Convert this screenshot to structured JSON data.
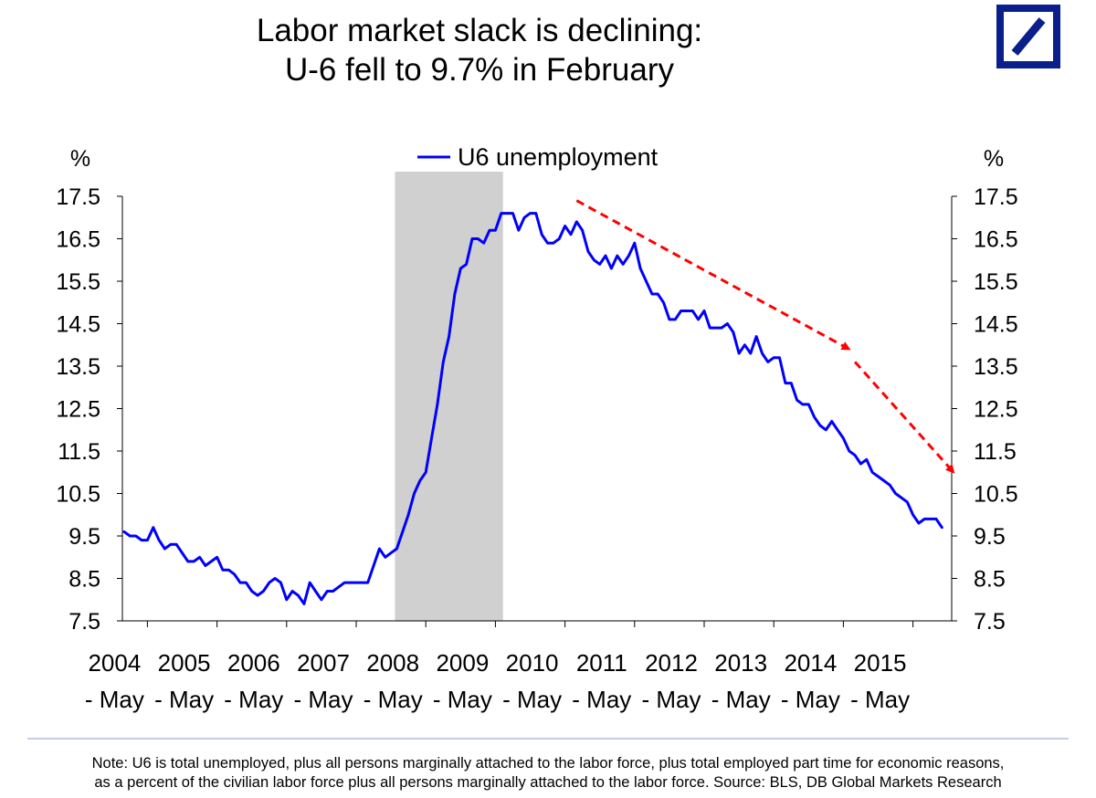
{
  "header": {
    "title_line1": "Labor market slack is declining:",
    "title_line2": "U-6 fell to 9.7% in February",
    "logo_icon": "deutsche-bank-logo-icon",
    "logo_color": "#0a1e8c"
  },
  "chart_data": {
    "type": "line",
    "title": "Labor market slack is declining: U-6 fell to 9.7% in February",
    "y_unit_left": "%",
    "y_unit_right": "%",
    "ylim": [
      7.5,
      17.5
    ],
    "yticks": [
      "17.5",
      "16.5",
      "15.5",
      "14.5",
      "13.5",
      "12.5",
      "11.5",
      "10.5",
      "9.5",
      "8.5",
      "7.5"
    ],
    "x_tick_labels": [
      {
        "year": "2004",
        "sub": "- May"
      },
      {
        "year": "2005",
        "sub": "- May"
      },
      {
        "year": "2006",
        "sub": "- May"
      },
      {
        "year": "2007",
        "sub": "- May"
      },
      {
        "year": "2008",
        "sub": "- May"
      },
      {
        "year": "2009",
        "sub": "- May"
      },
      {
        "year": "2010",
        "sub": "- May"
      },
      {
        "year": "2011",
        "sub": "- May"
      },
      {
        "year": "2012",
        "sub": "- May"
      },
      {
        "year": "2013",
        "sub": "- May"
      },
      {
        "year": "2014",
        "sub": "- May"
      },
      {
        "year": "2015",
        "sub": "- May"
      }
    ],
    "legend": "U6 unemployment",
    "legend_position": "top-center",
    "grid": false,
    "recession_shading": {
      "start": "2007-12",
      "end": "2009-06",
      "color": "#d0d0d0"
    },
    "series": [
      {
        "name": "U6 unemployment",
        "color": "#0000ff",
        "start": "2004-01",
        "frequency": "monthly",
        "values": [
          9.6,
          9.5,
          9.5,
          9.4,
          9.4,
          9.7,
          9.4,
          9.2,
          9.3,
          9.3,
          9.1,
          8.9,
          8.9,
          9.0,
          8.8,
          8.9,
          9.0,
          8.7,
          8.7,
          8.6,
          8.4,
          8.4,
          8.2,
          8.1,
          8.2,
          8.4,
          8.5,
          8.4,
          8.0,
          8.2,
          8.1,
          7.9,
          8.4,
          8.2,
          8.0,
          8.2,
          8.2,
          8.3,
          8.4,
          8.4,
          8.4,
          8.4,
          8.4,
          8.8,
          9.2,
          9.0,
          9.1,
          9.2,
          9.6,
          10.0,
          10.5,
          10.8,
          11.0,
          11.8,
          12.6,
          13.6,
          14.2,
          15.2,
          15.8,
          15.9,
          16.5,
          16.5,
          16.4,
          16.7,
          16.7,
          17.1,
          17.1,
          17.1,
          16.7,
          17.0,
          17.1,
          17.1,
          16.6,
          16.4,
          16.4,
          16.5,
          16.8,
          16.6,
          16.9,
          16.7,
          16.2,
          16.0,
          15.9,
          16.1,
          15.8,
          16.1,
          15.9,
          16.1,
          16.4,
          15.8,
          15.5,
          15.2,
          15.2,
          15.0,
          14.6,
          14.6,
          14.8,
          14.8,
          14.8,
          14.6,
          14.8,
          14.4,
          14.4,
          14.4,
          14.5,
          14.3,
          13.8,
          14.0,
          13.8,
          14.2,
          13.8,
          13.6,
          13.7,
          13.7,
          13.1,
          13.1,
          12.7,
          12.6,
          12.6,
          12.3,
          12.1,
          12.0,
          12.2,
          12.0,
          11.8,
          11.5,
          11.4,
          11.2,
          11.3,
          11.0,
          10.9,
          10.8,
          10.7,
          10.5,
          10.4,
          10.3,
          10.0,
          9.8,
          9.9,
          9.9,
          9.9,
          9.7
        ]
      }
    ],
    "annotations": [
      {
        "type": "arrow",
        "style": "dashed",
        "color": "#ff0000",
        "from": {
          "x": "2010-07",
          "y": 17.4
        },
        "to": {
          "x": "2014-06",
          "y": 13.9
        }
      },
      {
        "type": "arrow",
        "style": "dashed",
        "color": "#ff0000",
        "from": {
          "x": "2014-07",
          "y": 13.6
        },
        "to": {
          "x": "2015-12",
          "y": 11.0
        }
      }
    ]
  },
  "footnote": {
    "line1": "Note: U6 is total unemployed, plus all persons marginally attached to the labor force, plus total employed part time for economic reasons,",
    "line2": "as a percent of the civilian labor force plus all persons marginally attached to the labor force. Source: BLS, DB Global Markets Research"
  }
}
